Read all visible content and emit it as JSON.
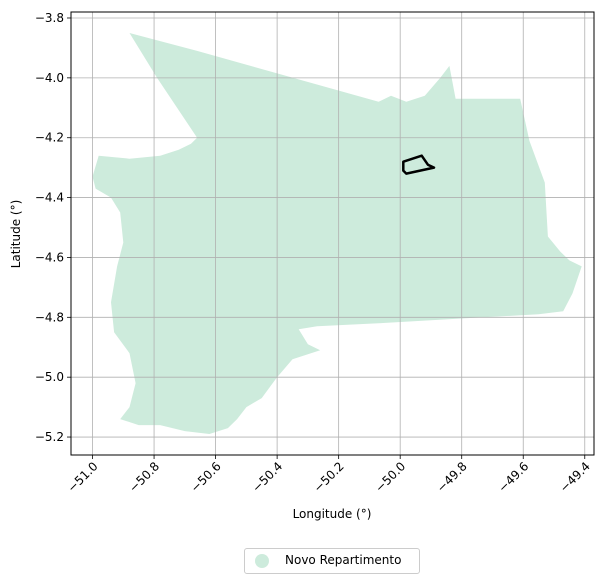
{
  "chart_data": {
    "type": "map",
    "xlabel": "Longitude (°)",
    "ylabel": "Latitude (°)",
    "xlim": [
      -51.07,
      -49.37
    ],
    "ylim": [
      -5.26,
      -3.78
    ],
    "x_ticks": [
      -51.0,
      -50.8,
      -50.6,
      -50.4,
      -50.2,
      -50.0,
      -49.8,
      -49.6,
      -49.4
    ],
    "x_tick_labels": [
      "−51.0",
      "−50.8",
      "−50.6",
      "−50.4",
      "−50.2",
      "−50.0",
      "−49.8",
      "−49.6",
      "−49.4"
    ],
    "y_ticks": [
      -3.8,
      -4.0,
      -4.2,
      -4.4,
      -4.6,
      -4.8,
      -5.0,
      -5.2
    ],
    "y_tick_labels": [
      "−3.8",
      "−4.0",
      "−4.2",
      "−4.4",
      "−4.6",
      "−4.8",
      "−5.0",
      "−5.2"
    ],
    "grid": true,
    "legend_position": "bottom-center",
    "municipality": {
      "name": "Novo Repartimento",
      "color": "#cdebdc",
      "boundary": [
        [
          -50.88,
          -3.85
        ],
        [
          -50.66,
          -3.91
        ],
        [
          -50.07,
          -4.08
        ],
        [
          -50.03,
          -4.06
        ],
        [
          -49.98,
          -4.08
        ],
        [
          -49.92,
          -4.06
        ],
        [
          -49.87,
          -4.0
        ],
        [
          -49.84,
          -3.96
        ],
        [
          -49.82,
          -4.07
        ],
        [
          -49.61,
          -4.07
        ],
        [
          -49.58,
          -4.21
        ],
        [
          -49.53,
          -4.35
        ],
        [
          -49.52,
          -4.53
        ],
        [
          -49.48,
          -4.58
        ],
        [
          -49.45,
          -4.61
        ],
        [
          -49.41,
          -4.63
        ],
        [
          -49.44,
          -4.72
        ],
        [
          -49.47,
          -4.78
        ],
        [
          -49.55,
          -4.79
        ],
        [
          -49.73,
          -4.8
        ],
        [
          -50.07,
          -4.82
        ],
        [
          -50.27,
          -4.83
        ],
        [
          -50.33,
          -4.84
        ],
        [
          -50.3,
          -4.89
        ],
        [
          -50.26,
          -4.91
        ],
        [
          -50.35,
          -4.94
        ],
        [
          -50.4,
          -5.0
        ],
        [
          -50.45,
          -5.07
        ],
        [
          -50.5,
          -5.1
        ],
        [
          -50.53,
          -5.14
        ],
        [
          -50.56,
          -5.17
        ],
        [
          -50.62,
          -5.19
        ],
        [
          -50.7,
          -5.18
        ],
        [
          -50.78,
          -5.16
        ],
        [
          -50.85,
          -5.16
        ],
        [
          -50.91,
          -5.14
        ],
        [
          -50.88,
          -5.1
        ],
        [
          -50.86,
          -5.02
        ],
        [
          -50.88,
          -4.92
        ],
        [
          -50.93,
          -4.85
        ],
        [
          -50.94,
          -4.75
        ],
        [
          -50.92,
          -4.63
        ],
        [
          -50.9,
          -4.55
        ],
        [
          -50.91,
          -4.45
        ],
        [
          -50.94,
          -4.4
        ],
        [
          -50.99,
          -4.37
        ],
        [
          -51.0,
          -4.33
        ],
        [
          -50.98,
          -4.26
        ],
        [
          -50.88,
          -4.27
        ],
        [
          -50.78,
          -4.26
        ],
        [
          -50.72,
          -4.24
        ],
        [
          -50.68,
          -4.22
        ],
        [
          -50.66,
          -4.2
        ],
        [
          -50.79,
          -4.0
        ]
      ]
    },
    "highlight_outline": {
      "color": "#000000",
      "boundary": [
        [
          -49.99,
          -4.28
        ],
        [
          -49.93,
          -4.26
        ],
        [
          -49.91,
          -4.29
        ],
        [
          -49.89,
          -4.3
        ],
        [
          -49.98,
          -4.32
        ],
        [
          -49.99,
          -4.31
        ]
      ]
    }
  }
}
